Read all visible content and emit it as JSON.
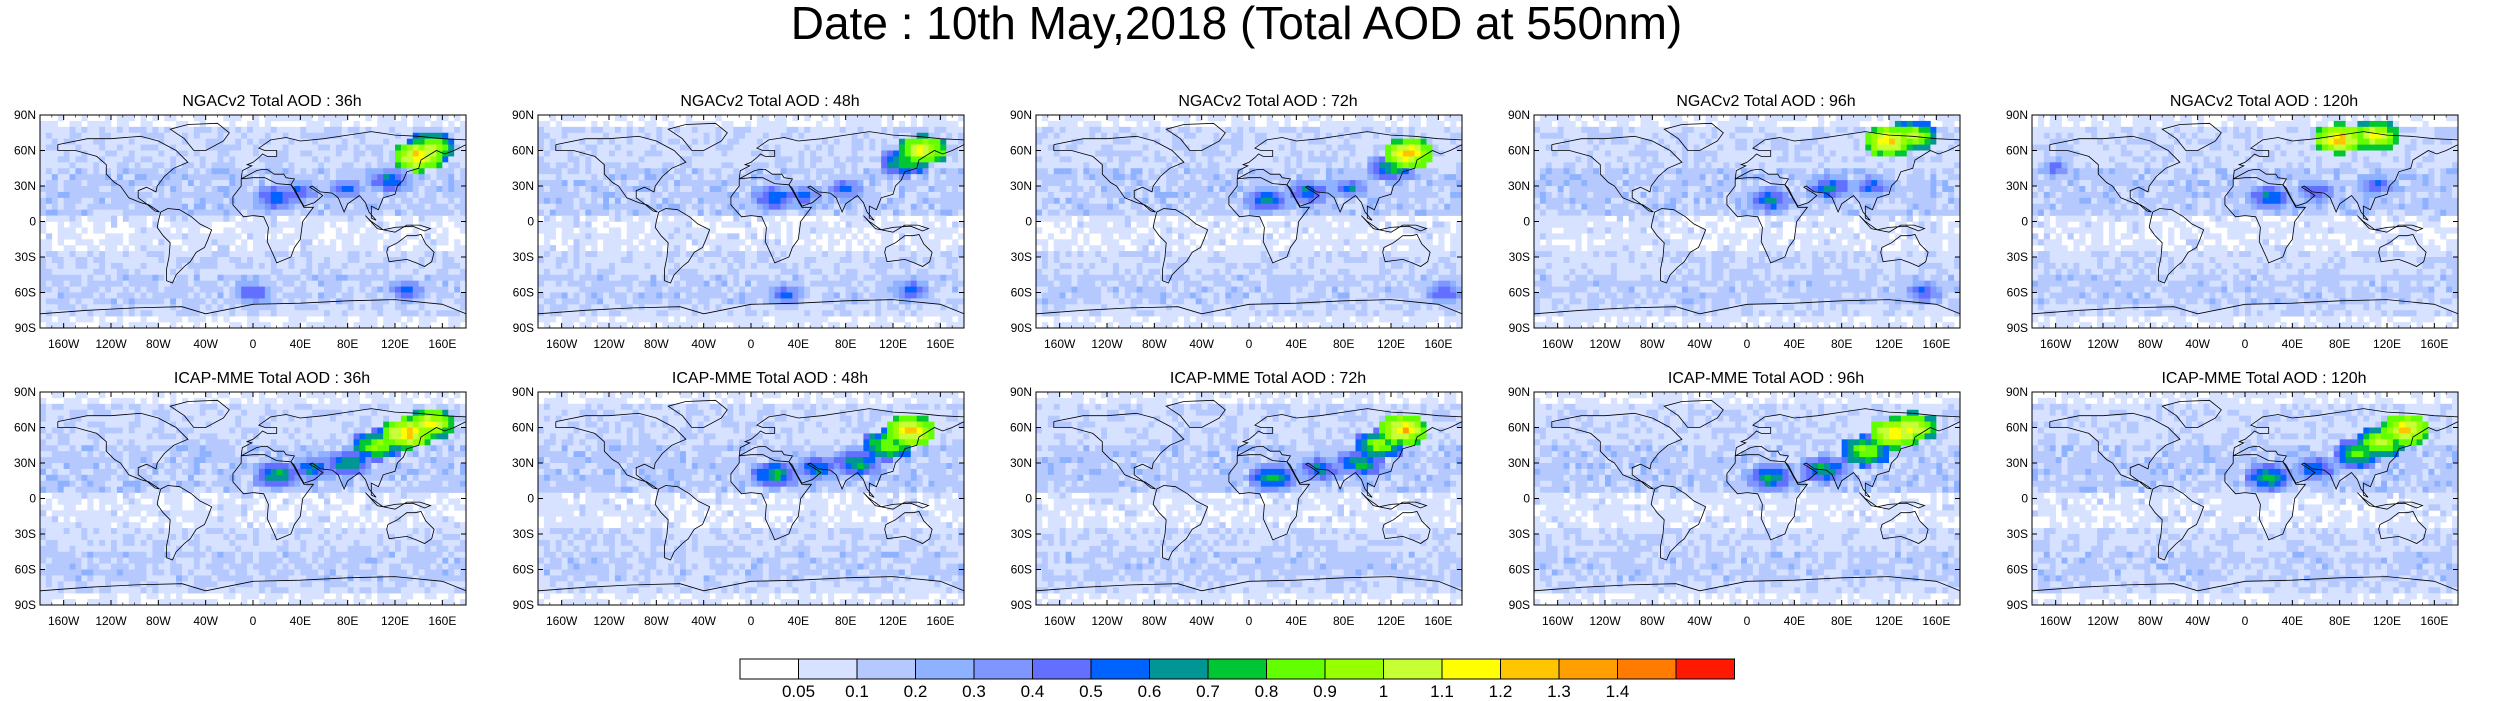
{
  "title": "Date : 10th May,2018 (Total AOD at 550nm)",
  "rows": [
    {
      "model": "NGACv2",
      "panels": [
        {
          "title": "NGACv2 Total AOD : 36h",
          "lead": "36h",
          "hotspots": [
            {
              "lon": 140,
              "lat": 55,
              "level": 13
            },
            {
              "lon": 150,
              "lat": 62,
              "level": 11
            },
            {
              "lon": 20,
              "lat": 20,
              "level": 7
            },
            {
              "lon": 40,
              "lat": 25,
              "level": 6
            },
            {
              "lon": 80,
              "lat": 28,
              "level": 6
            },
            {
              "lon": 115,
              "lat": 35,
              "level": 7
            },
            {
              "lon": 0,
              "lat": -60,
              "level": 6
            },
            {
              "lon": 130,
              "lat": -58,
              "level": 6
            }
          ]
        },
        {
          "title": "NGACv2 Total AOD : 48h",
          "lead": "48h",
          "hotspots": [
            {
              "lon": 145,
              "lat": 60,
              "level": 12
            },
            {
              "lon": 130,
              "lat": 50,
              "level": 9
            },
            {
              "lon": 20,
              "lat": 20,
              "level": 7
            },
            {
              "lon": 45,
              "lat": 22,
              "level": 6
            },
            {
              "lon": 80,
              "lat": 28,
              "level": 6
            },
            {
              "lon": 30,
              "lat": -62,
              "level": 6
            },
            {
              "lon": 135,
              "lat": -58,
              "level": 6
            }
          ]
        },
        {
          "title": "NGACv2 Total AOD : 72h",
          "lead": "72h",
          "hotspots": [
            {
              "lon": 135,
              "lat": 57,
              "level": 13
            },
            {
              "lon": 120,
              "lat": 45,
              "level": 8
            },
            {
              "lon": 15,
              "lat": 18,
              "level": 7
            },
            {
              "lon": 50,
              "lat": 25,
              "level": 7
            },
            {
              "lon": 85,
              "lat": 28,
              "level": 6
            },
            {
              "lon": 165,
              "lat": -60,
              "level": 6
            }
          ]
        },
        {
          "title": "NGACv2 Total AOD : 96h",
          "lead": "96h",
          "hotspots": [
            {
              "lon": 120,
              "lat": 68,
              "level": 13
            },
            {
              "lon": 140,
              "lat": 72,
              "level": 11
            },
            {
              "lon": 20,
              "lat": 18,
              "level": 7
            },
            {
              "lon": 70,
              "lat": 28,
              "level": 7
            },
            {
              "lon": 105,
              "lat": 30,
              "level": 6
            },
            {
              "lon": 150,
              "lat": -60,
              "level": 6
            }
          ]
        },
        {
          "title": "NGACv2 Total AOD : 120h",
          "lead": "120h",
          "hotspots": [
            {
              "lon": 80,
              "lat": 70,
              "level": 13
            },
            {
              "lon": 110,
              "lat": 72,
              "level": 12
            },
            {
              "lon": 20,
              "lat": 20,
              "level": 7
            },
            {
              "lon": 60,
              "lat": 25,
              "level": 6
            },
            {
              "lon": 110,
              "lat": 30,
              "level": 6
            },
            {
              "lon": -160,
              "lat": 45,
              "level": 5
            }
          ]
        }
      ]
    },
    {
      "model": "ICAP-MME",
      "panels": [
        {
          "title": "ICAP-MME Total AOD : 36h",
          "lead": "36h",
          "hotspots": [
            {
              "lon": 130,
              "lat": 55,
              "level": 13
            },
            {
              "lon": 150,
              "lat": 63,
              "level": 12
            },
            {
              "lon": 105,
              "lat": 45,
              "level": 10
            },
            {
              "lon": 20,
              "lat": 20,
              "level": 8
            },
            {
              "lon": 50,
              "lat": 25,
              "level": 7
            },
            {
              "lon": 80,
              "lat": 30,
              "level": 8
            }
          ]
        },
        {
          "title": "ICAP-MME Total AOD : 48h",
          "lead": "48h",
          "hotspots": [
            {
              "lon": 135,
              "lat": 57,
              "level": 13
            },
            {
              "lon": 115,
              "lat": 45,
              "level": 10
            },
            {
              "lon": 20,
              "lat": 20,
              "level": 8
            },
            {
              "lon": 55,
              "lat": 25,
              "level": 7
            },
            {
              "lon": 90,
              "lat": 30,
              "level": 8
            }
          ]
        },
        {
          "title": "ICAP-MME Total AOD : 72h",
          "lead": "72h",
          "hotspots": [
            {
              "lon": 130,
              "lat": 58,
              "level": 13
            },
            {
              "lon": 110,
              "lat": 45,
              "level": 10
            },
            {
              "lon": 20,
              "lat": 18,
              "level": 8
            },
            {
              "lon": 60,
              "lat": 25,
              "level": 7
            },
            {
              "lon": 95,
              "lat": 30,
              "level": 8
            }
          ]
        },
        {
          "title": "ICAP-MME Total AOD : 96h",
          "lead": "96h",
          "hotspots": [
            {
              "lon": 125,
              "lat": 55,
              "level": 13
            },
            {
              "lon": 140,
              "lat": 60,
              "level": 12
            },
            {
              "lon": 100,
              "lat": 40,
              "level": 10
            },
            {
              "lon": 20,
              "lat": 18,
              "level": 8
            },
            {
              "lon": 65,
              "lat": 25,
              "level": 8
            }
          ]
        },
        {
          "title": "ICAP-MME Total AOD : 120h",
          "lead": "120h",
          "hotspots": [
            {
              "lon": 135,
              "lat": 58,
              "level": 13
            },
            {
              "lon": 115,
              "lat": 48,
              "level": 11
            },
            {
              "lon": 95,
              "lat": 38,
              "level": 9
            },
            {
              "lon": 20,
              "lat": 18,
              "level": 8
            },
            {
              "lon": 60,
              "lat": 25,
              "level": 7
            }
          ]
        }
      ]
    }
  ],
  "axes": {
    "lat_labels": [
      "90N",
      "60N",
      "30N",
      "0",
      "30S",
      "60S",
      "90S"
    ],
    "lat_values": [
      90,
      60,
      30,
      0,
      -30,
      -60,
      -90
    ],
    "lon_labels": [
      "160W",
      "120W",
      "80W",
      "40W",
      "0",
      "40E",
      "80E",
      "120E",
      "160E"
    ],
    "lon_values": [
      -160,
      -120,
      -80,
      -40,
      0,
      40,
      80,
      120,
      160
    ]
  },
  "colorbar": {
    "labels": [
      "0.05",
      "0.1",
      "0.2",
      "0.3",
      "0.4",
      "0.5",
      "0.6",
      "0.7",
      "0.8",
      "0.9",
      "1",
      "1.1",
      "1.2",
      "1.3",
      "1.4"
    ],
    "colors": [
      "#ffffff",
      "#d6e2ff",
      "#b5c9ff",
      "#8eb2ff",
      "#7f96ff",
      "#6370ff",
      "#0063ff",
      "#009696",
      "#00c633",
      "#63ff00",
      "#96ff00",
      "#c6ff33",
      "#ffff00",
      "#ffc600",
      "#ffa000",
      "#ff7c00",
      "#ff1900"
    ]
  }
}
